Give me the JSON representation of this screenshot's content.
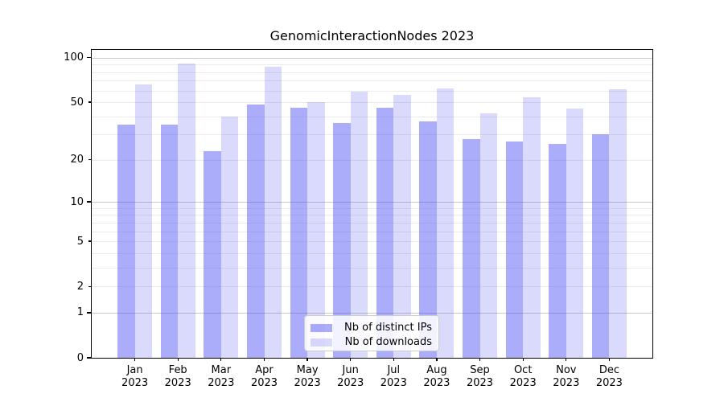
{
  "chart_data": {
    "type": "bar",
    "title": "GenomicInteractionNodes 2023",
    "categories": [
      "Jan",
      "Feb",
      "Mar",
      "Apr",
      "May",
      "Jun",
      "Jul",
      "Aug",
      "Sep",
      "Oct",
      "Nov",
      "Dec"
    ],
    "category_year": "2023",
    "series": [
      {
        "name": "Nb of distinct IPs",
        "color": "rgba(68,70,243,0.45)",
        "values": [
          35,
          35,
          23,
          48,
          46,
          36,
          46,
          37,
          28,
          27,
          26,
          30
        ]
      },
      {
        "name": "Nb of downloads",
        "color": "rgba(68,70,243,0.20)",
        "values": [
          66,
          91,
          40,
          87,
          50,
          59,
          56,
          62,
          42,
          54,
          45,
          61
        ]
      }
    ],
    "xlabel": "",
    "ylabel": "",
    "y_axis": {
      "scale": "log1p",
      "tick_labels": [
        100,
        50,
        20,
        10,
        5,
        2,
        1,
        0
      ],
      "major_gridlines": [
        1,
        10,
        100
      ],
      "minor_gridlines": [
        2,
        3,
        4,
        5,
        6,
        7,
        8,
        9,
        20,
        30,
        40,
        50,
        60,
        70,
        80,
        90
      ],
      "ylim": [
        0,
        110
      ]
    },
    "grid": true,
    "legend_position": "lower center",
    "colors": {
      "grid_major": "#c9c9c9",
      "grid_minor": "#ebebeb",
      "axes_frame": "#000000"
    }
  }
}
